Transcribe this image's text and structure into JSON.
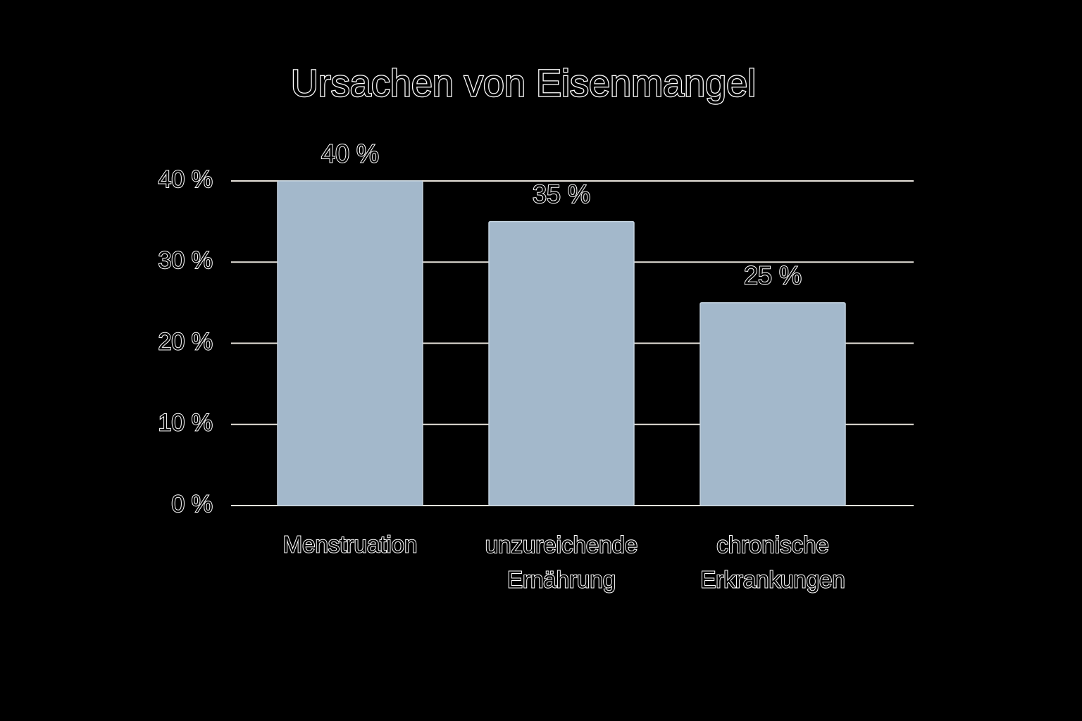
{
  "chart_data": {
    "type": "bar",
    "title": "Ursachen von Eisenmangel",
    "categories": [
      "Menstruation",
      "unzureichende Ernährung",
      "chronische Erkrankungen"
    ],
    "values": [
      40,
      35,
      25
    ],
    "value_labels": [
      "40 %",
      "35 %",
      "25 %"
    ],
    "color": "#a3b8cb",
    "ylim": [
      0,
      40
    ],
    "yticks": [
      {
        "value": 0,
        "label": "0 %"
      },
      {
        "value": 10,
        "label": "10 %"
      },
      {
        "value": 20,
        "label": "20 %"
      },
      {
        "value": 30,
        "label": "30 %"
      },
      {
        "value": 40,
        "label": "40 %"
      }
    ],
    "grid": true
  }
}
